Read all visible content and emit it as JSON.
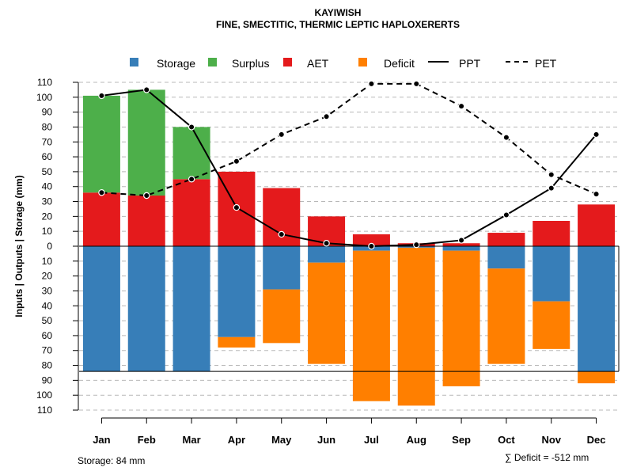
{
  "chart_data": {
    "type": "bar",
    "title": "KAYIWISH",
    "subtitle": "FINE, SMECTITIC, THERMIC LEPTIC HAPLOXERERTS",
    "ylabel": "Inputs | Outputs | Storage   (mm)",
    "categories": [
      "Jan",
      "Feb",
      "Mar",
      "Apr",
      "May",
      "Jun",
      "Jul",
      "Aug",
      "Sep",
      "Oct",
      "Nov",
      "Dec"
    ],
    "ylim": [
      -110,
      110
    ],
    "y_tick_values": [
      110,
      100,
      90,
      80,
      70,
      60,
      50,
      40,
      30,
      20,
      10,
      0,
      -10,
      -20,
      -30,
      -40,
      -50,
      -60,
      -70,
      -80,
      -90,
      -100,
      -110
    ],
    "y_tick_labels": [
      "110",
      "100",
      "90",
      "80",
      "70",
      "60",
      "50",
      "40",
      "30",
      "20",
      "10",
      "0",
      "10",
      "20",
      "30",
      "40",
      "50",
      "60",
      "70",
      "80",
      "90",
      "100",
      "110"
    ],
    "storage_capacity": 84,
    "legend": [
      {
        "key": "storage",
        "label": "Storage",
        "color": "#377EB8",
        "kind": "box"
      },
      {
        "key": "surplus",
        "label": "Surplus",
        "color": "#4DAF4A",
        "kind": "box"
      },
      {
        "key": "aet",
        "label": "AET",
        "color": "#E41A1C",
        "kind": "box"
      },
      {
        "key": "deficit",
        "label": "Deficit",
        "color": "#FF7F00",
        "kind": "box"
      },
      {
        "key": "ppt",
        "label": "PPT",
        "color": "#000000",
        "kind": "solid"
      },
      {
        "key": "pet",
        "label": "PET",
        "color": "#000000",
        "kind": "dashed"
      }
    ],
    "series": [
      {
        "name": "AET",
        "values": [
          36,
          34,
          45,
          50,
          39,
          20,
          8,
          2,
          2,
          9,
          17,
          28
        ]
      },
      {
        "name": "Surplus",
        "values": [
          65,
          71,
          35,
          0,
          0,
          0,
          0,
          0,
          0,
          0,
          0,
          0
        ]
      },
      {
        "name": "Storage",
        "values": [
          84,
          84,
          84,
          61,
          29,
          11,
          3,
          1,
          3,
          15,
          37,
          84
        ]
      },
      {
        "name": "Deficit",
        "values": [
          0,
          0,
          0,
          7,
          36,
          68,
          101,
          106,
          91,
          64,
          32,
          8
        ]
      },
      {
        "name": "PPT",
        "values": [
          101,
          105,
          80,
          26,
          8,
          2,
          0,
          1,
          4,
          21,
          39,
          75
        ]
      },
      {
        "name": "PET",
        "values": [
          36,
          34,
          45,
          57,
          75,
          87,
          109,
          109,
          94,
          73,
          48,
          35
        ]
      }
    ],
    "footer_left": "Storage: 84 mm",
    "footer_right": "∑ Deficit = -512 mm"
  }
}
